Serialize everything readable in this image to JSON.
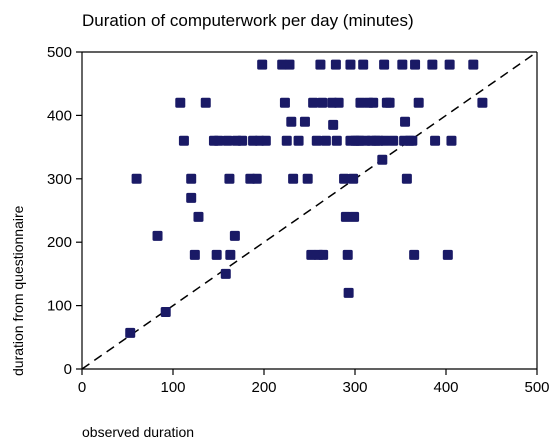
{
  "chart_data": {
    "type": "scatter",
    "title": "Duration of computerwork per day (minutes)",
    "xlabel": "observed duration",
    "ylabel": "duration from questionnaire",
    "xlim": [
      0,
      500
    ],
    "ylim": [
      0,
      500
    ],
    "xticks": [
      "0",
      "100",
      "200",
      "300",
      "400",
      "500"
    ],
    "yticks": [
      "0",
      "100",
      "200",
      "300",
      "400",
      "500"
    ],
    "grid": false,
    "marker_color": "#1a1a66",
    "reference_line": {
      "style": "dashed",
      "from": [
        0,
        0
      ],
      "to": [
        500,
        500
      ]
    },
    "points": [
      [
        53,
        57
      ],
      [
        60,
        300
      ],
      [
        83,
        210
      ],
      [
        92,
        90
      ],
      [
        108,
        420
      ],
      [
        112,
        360
      ],
      [
        120,
        300
      ],
      [
        120,
        270
      ],
      [
        124,
        180
      ],
      [
        128,
        240
      ],
      [
        136,
        420
      ],
      [
        145,
        360
      ],
      [
        148,
        180
      ],
      [
        150,
        360
      ],
      [
        158,
        150
      ],
      [
        160,
        360
      ],
      [
        162,
        300
      ],
      [
        163,
        180
      ],
      [
        168,
        210
      ],
      [
        170,
        360
      ],
      [
        176,
        360
      ],
      [
        185,
        300
      ],
      [
        188,
        360
      ],
      [
        192,
        300
      ],
      [
        195,
        360
      ],
      [
        198,
        480
      ],
      [
        202,
        360
      ],
      [
        220,
        480
      ],
      [
        223,
        420
      ],
      [
        225,
        360
      ],
      [
        228,
        480
      ],
      [
        230,
        390
      ],
      [
        232,
        300
      ],
      [
        238,
        360
      ],
      [
        245,
        390
      ],
      [
        248,
        300
      ],
      [
        252,
        180
      ],
      [
        254,
        420
      ],
      [
        258,
        360
      ],
      [
        260,
        180
      ],
      [
        262,
        480
      ],
      [
        264,
        420
      ],
      [
        265,
        180
      ],
      [
        268,
        360
      ],
      [
        275,
        420
      ],
      [
        276,
        385
      ],
      [
        279,
        480
      ],
      [
        280,
        360
      ],
      [
        282,
        420
      ],
      [
        288,
        300
      ],
      [
        290,
        240
      ],
      [
        292,
        180
      ],
      [
        293,
        120
      ],
      [
        295,
        480
      ],
      [
        295,
        360
      ],
      [
        298,
        300
      ],
      [
        299,
        240
      ],
      [
        300,
        360
      ],
      [
        303,
        360
      ],
      [
        305,
        360
      ],
      [
        306,
        420
      ],
      [
        309,
        480
      ],
      [
        312,
        360
      ],
      [
        315,
        420
      ],
      [
        318,
        360
      ],
      [
        320,
        420
      ],
      [
        323,
        360
      ],
      [
        326,
        360
      ],
      [
        330,
        330
      ],
      [
        332,
        480
      ],
      [
        333,
        360
      ],
      [
        335,
        420
      ],
      [
        338,
        420
      ],
      [
        342,
        360
      ],
      [
        352,
        480
      ],
      [
        354,
        360
      ],
      [
        355,
        390
      ],
      [
        357,
        300
      ],
      [
        360,
        360
      ],
      [
        363,
        360
      ],
      [
        365,
        180
      ],
      [
        366,
        480
      ],
      [
        370,
        420
      ],
      [
        385,
        480
      ],
      [
        388,
        360
      ],
      [
        402,
        180
      ],
      [
        404,
        480
      ],
      [
        406,
        360
      ],
      [
        430,
        480
      ],
      [
        440,
        420
      ]
    ]
  }
}
